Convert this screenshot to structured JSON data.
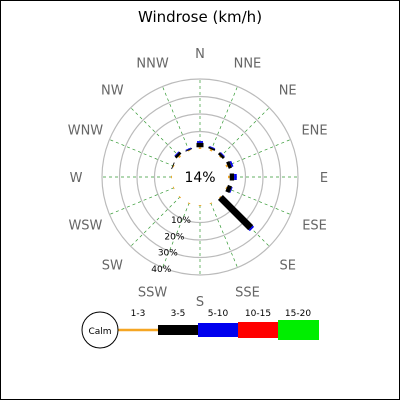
{
  "chart_data": {
    "type": "windrose",
    "title": "Windrose (km/h)",
    "unit": "km/h",
    "directions": [
      "N",
      "NNE",
      "NE",
      "ENE",
      "E",
      "ESE",
      "SE",
      "SSE",
      "S",
      "SSW",
      "SW",
      "WSW",
      "W",
      "WNW",
      "NW",
      "NNW"
    ],
    "radial_ticks": [
      10,
      20,
      30,
      40
    ],
    "radial_tick_labels": [
      "10%",
      "20%",
      "30%",
      "40%"
    ],
    "radial_max": 40,
    "calm_percent": 14,
    "calm_label": "14%",
    "speed_bins": [
      {
        "name": "1-3",
        "color": "#f5a623"
      },
      {
        "name": "3-5",
        "color": "#000000"
      },
      {
        "name": "5-10",
        "color": "#0000ee"
      },
      {
        "name": "10-15",
        "color": "#ff0000"
      },
      {
        "name": "15-20",
        "color": "#00ee00"
      }
    ],
    "series": [
      {
        "name": "1-3",
        "values": [
          1.0,
          1.0,
          0.5,
          1.0,
          1.0,
          0.5,
          0.5,
          0.5,
          0.5,
          0.5,
          0.5,
          0.5,
          0.5,
          0.5,
          1.0,
          0.5
        ]
      },
      {
        "name": "3-5",
        "values": [
          2.5,
          1.0,
          1.5,
          2.0,
          2.5,
          2.5,
          24.5,
          0.0,
          0.0,
          0.0,
          0.0,
          0.0,
          0.0,
          0.5,
          1.5,
          0.5
        ]
      },
      {
        "name": "5-10",
        "values": [
          1.0,
          0.5,
          0.5,
          1.0,
          1.5,
          0.5,
          1.0,
          0.0,
          0.0,
          0.0,
          0.0,
          0.0,
          0.0,
          0.0,
          0.5,
          0.5
        ]
      },
      {
        "name": "10-15",
        "values": [
          0,
          0,
          0,
          0,
          0,
          0,
          0,
          0,
          0,
          0,
          0,
          0,
          0,
          0,
          0,
          0
        ]
      },
      {
        "name": "15-20",
        "values": [
          0,
          0,
          0,
          0,
          0,
          0,
          0,
          0,
          0,
          0,
          0,
          0,
          0,
          0,
          0,
          0
        ]
      }
    ],
    "legend": {
      "calm_label": "Calm",
      "placement": "bottom"
    },
    "colors": {
      "ring": "#bbbbbb",
      "spoke": "#339933"
    }
  }
}
